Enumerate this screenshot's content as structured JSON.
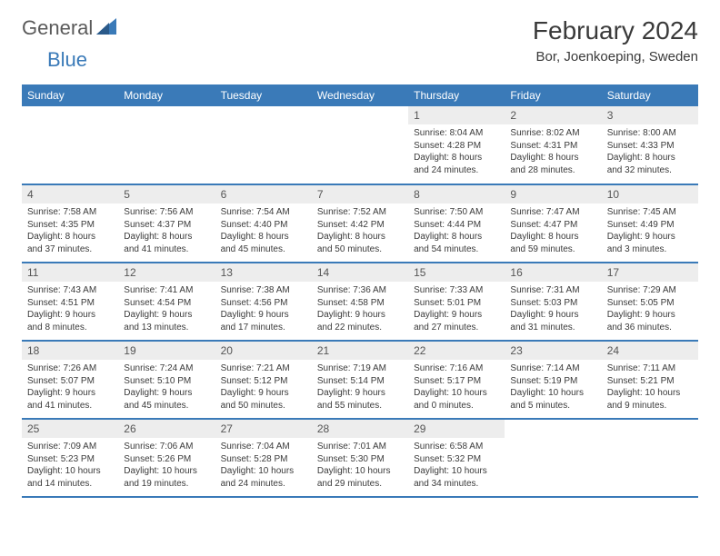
{
  "brand": {
    "part1": "General",
    "part2": "Blue"
  },
  "title": "February 2024",
  "location": "Bor, Joenkoeping, Sweden",
  "colors": {
    "header_bg": "#3a7ab8",
    "header_text": "#ffffff",
    "daynum_bg": "#ededed",
    "row_divider": "#3a7ab8",
    "body_text": "#3a3a3a",
    "logo_gray": "#5a5a5a",
    "logo_blue": "#3a7ab8",
    "page_bg": "#ffffff"
  },
  "typography": {
    "title_fontsize": 28,
    "location_fontsize": 15,
    "weekday_fontsize": 12,
    "daynum_fontsize": 12,
    "body_fontsize": 10
  },
  "weekdays": [
    "Sunday",
    "Monday",
    "Tuesday",
    "Wednesday",
    "Thursday",
    "Friday",
    "Saturday"
  ],
  "weeks": [
    [
      null,
      null,
      null,
      null,
      {
        "n": "1",
        "sr": "Sunrise: 8:04 AM",
        "ss": "Sunset: 4:28 PM",
        "d1": "Daylight: 8 hours",
        "d2": "and 24 minutes."
      },
      {
        "n": "2",
        "sr": "Sunrise: 8:02 AM",
        "ss": "Sunset: 4:31 PM",
        "d1": "Daylight: 8 hours",
        "d2": "and 28 minutes."
      },
      {
        "n": "3",
        "sr": "Sunrise: 8:00 AM",
        "ss": "Sunset: 4:33 PM",
        "d1": "Daylight: 8 hours",
        "d2": "and 32 minutes."
      }
    ],
    [
      {
        "n": "4",
        "sr": "Sunrise: 7:58 AM",
        "ss": "Sunset: 4:35 PM",
        "d1": "Daylight: 8 hours",
        "d2": "and 37 minutes."
      },
      {
        "n": "5",
        "sr": "Sunrise: 7:56 AM",
        "ss": "Sunset: 4:37 PM",
        "d1": "Daylight: 8 hours",
        "d2": "and 41 minutes."
      },
      {
        "n": "6",
        "sr": "Sunrise: 7:54 AM",
        "ss": "Sunset: 4:40 PM",
        "d1": "Daylight: 8 hours",
        "d2": "and 45 minutes."
      },
      {
        "n": "7",
        "sr": "Sunrise: 7:52 AM",
        "ss": "Sunset: 4:42 PM",
        "d1": "Daylight: 8 hours",
        "d2": "and 50 minutes."
      },
      {
        "n": "8",
        "sr": "Sunrise: 7:50 AM",
        "ss": "Sunset: 4:44 PM",
        "d1": "Daylight: 8 hours",
        "d2": "and 54 minutes."
      },
      {
        "n": "9",
        "sr": "Sunrise: 7:47 AM",
        "ss": "Sunset: 4:47 PM",
        "d1": "Daylight: 8 hours",
        "d2": "and 59 minutes."
      },
      {
        "n": "10",
        "sr": "Sunrise: 7:45 AM",
        "ss": "Sunset: 4:49 PM",
        "d1": "Daylight: 9 hours",
        "d2": "and 3 minutes."
      }
    ],
    [
      {
        "n": "11",
        "sr": "Sunrise: 7:43 AM",
        "ss": "Sunset: 4:51 PM",
        "d1": "Daylight: 9 hours",
        "d2": "and 8 minutes."
      },
      {
        "n": "12",
        "sr": "Sunrise: 7:41 AM",
        "ss": "Sunset: 4:54 PM",
        "d1": "Daylight: 9 hours",
        "d2": "and 13 minutes."
      },
      {
        "n": "13",
        "sr": "Sunrise: 7:38 AM",
        "ss": "Sunset: 4:56 PM",
        "d1": "Daylight: 9 hours",
        "d2": "and 17 minutes."
      },
      {
        "n": "14",
        "sr": "Sunrise: 7:36 AM",
        "ss": "Sunset: 4:58 PM",
        "d1": "Daylight: 9 hours",
        "d2": "and 22 minutes."
      },
      {
        "n": "15",
        "sr": "Sunrise: 7:33 AM",
        "ss": "Sunset: 5:01 PM",
        "d1": "Daylight: 9 hours",
        "d2": "and 27 minutes."
      },
      {
        "n": "16",
        "sr": "Sunrise: 7:31 AM",
        "ss": "Sunset: 5:03 PM",
        "d1": "Daylight: 9 hours",
        "d2": "and 31 minutes."
      },
      {
        "n": "17",
        "sr": "Sunrise: 7:29 AM",
        "ss": "Sunset: 5:05 PM",
        "d1": "Daylight: 9 hours",
        "d2": "and 36 minutes."
      }
    ],
    [
      {
        "n": "18",
        "sr": "Sunrise: 7:26 AM",
        "ss": "Sunset: 5:07 PM",
        "d1": "Daylight: 9 hours",
        "d2": "and 41 minutes."
      },
      {
        "n": "19",
        "sr": "Sunrise: 7:24 AM",
        "ss": "Sunset: 5:10 PM",
        "d1": "Daylight: 9 hours",
        "d2": "and 45 minutes."
      },
      {
        "n": "20",
        "sr": "Sunrise: 7:21 AM",
        "ss": "Sunset: 5:12 PM",
        "d1": "Daylight: 9 hours",
        "d2": "and 50 minutes."
      },
      {
        "n": "21",
        "sr": "Sunrise: 7:19 AM",
        "ss": "Sunset: 5:14 PM",
        "d1": "Daylight: 9 hours",
        "d2": "and 55 minutes."
      },
      {
        "n": "22",
        "sr": "Sunrise: 7:16 AM",
        "ss": "Sunset: 5:17 PM",
        "d1": "Daylight: 10 hours",
        "d2": "and 0 minutes."
      },
      {
        "n": "23",
        "sr": "Sunrise: 7:14 AM",
        "ss": "Sunset: 5:19 PM",
        "d1": "Daylight: 10 hours",
        "d2": "and 5 minutes."
      },
      {
        "n": "24",
        "sr": "Sunrise: 7:11 AM",
        "ss": "Sunset: 5:21 PM",
        "d1": "Daylight: 10 hours",
        "d2": "and 9 minutes."
      }
    ],
    [
      {
        "n": "25",
        "sr": "Sunrise: 7:09 AM",
        "ss": "Sunset: 5:23 PM",
        "d1": "Daylight: 10 hours",
        "d2": "and 14 minutes."
      },
      {
        "n": "26",
        "sr": "Sunrise: 7:06 AM",
        "ss": "Sunset: 5:26 PM",
        "d1": "Daylight: 10 hours",
        "d2": "and 19 minutes."
      },
      {
        "n": "27",
        "sr": "Sunrise: 7:04 AM",
        "ss": "Sunset: 5:28 PM",
        "d1": "Daylight: 10 hours",
        "d2": "and 24 minutes."
      },
      {
        "n": "28",
        "sr": "Sunrise: 7:01 AM",
        "ss": "Sunset: 5:30 PM",
        "d1": "Daylight: 10 hours",
        "d2": "and 29 minutes."
      },
      {
        "n": "29",
        "sr": "Sunrise: 6:58 AM",
        "ss": "Sunset: 5:32 PM",
        "d1": "Daylight: 10 hours",
        "d2": "and 34 minutes."
      },
      null,
      null
    ]
  ]
}
